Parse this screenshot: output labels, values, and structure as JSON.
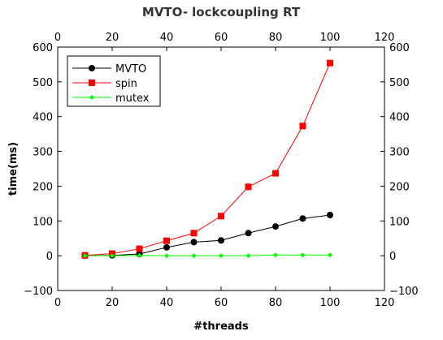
{
  "chart_data": {
    "type": "line",
    "title": "MVTO- lockcoupling RT",
    "xlabel": "#threads",
    "ylabel": "time(ms)",
    "xlim": [
      0,
      120
    ],
    "ylim": [
      -100,
      600
    ],
    "xticks": [
      0,
      20,
      40,
      60,
      80,
      100,
      120
    ],
    "yticks": [
      -100,
      0,
      100,
      200,
      300,
      400,
      500,
      600
    ],
    "grid": false,
    "legend_position": "top-left",
    "x": [
      10,
      20,
      30,
      40,
      50,
      60,
      70,
      80,
      90,
      100
    ],
    "series": [
      {
        "name": "MVTO",
        "color": "#000000",
        "marker": "circle",
        "values": [
          0,
          1,
          5,
          24,
          39,
          44,
          65,
          84,
          107,
          117
        ]
      },
      {
        "name": "spin",
        "color": "#ff0000",
        "marker": "square",
        "values": [
          1,
          6,
          20,
          43,
          65,
          114,
          198,
          237,
          373,
          554
        ]
      },
      {
        "name": "mutex",
        "color": "#00ff00",
        "marker": "diamond",
        "values": [
          0,
          0,
          1,
          0,
          0,
          0,
          0,
          2,
          2,
          2
        ]
      }
    ]
  }
}
